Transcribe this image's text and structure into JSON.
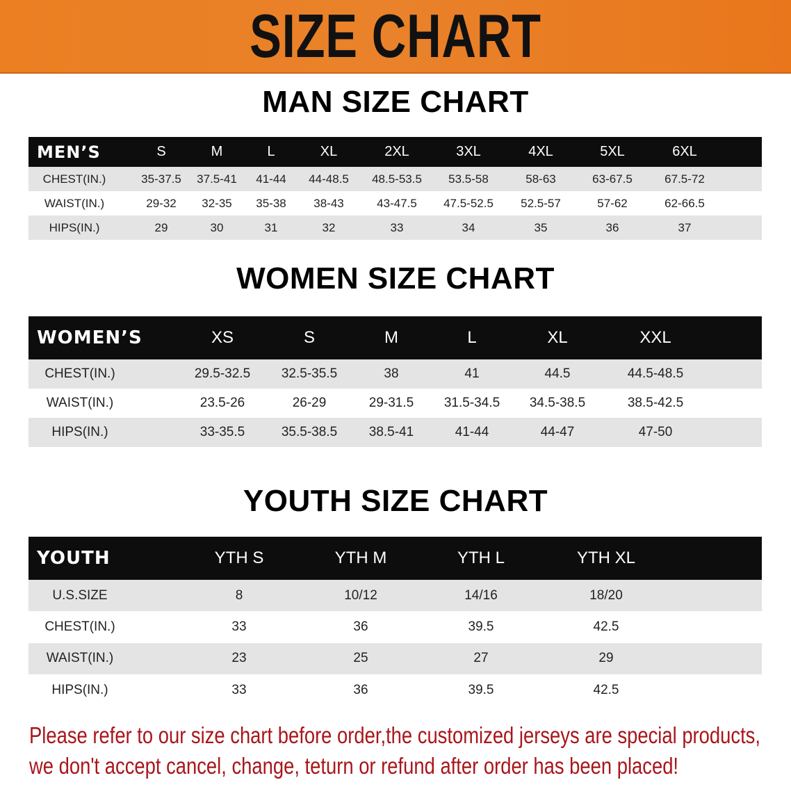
{
  "banner": {
    "title": "SIZE CHART",
    "color": "#e97b22"
  },
  "men": {
    "title": "MAN SIZE CHART",
    "corner": "MEN’S",
    "columns": [
      "S",
      "M",
      "L",
      "XL",
      "2XL",
      "3XL",
      "4XL",
      "5XL",
      "6XL"
    ],
    "rows": [
      {
        "label": "CHEST(IN.)",
        "values": [
          "35-37.5",
          "37.5-41",
          "41-44",
          "44-48.5",
          "48.5-53.5",
          "53.5-58",
          "58-63",
          "63-67.5",
          "67.5-72"
        ]
      },
      {
        "label": "WAIST(IN.)",
        "values": [
          "29-32",
          "32-35",
          "35-38",
          "38-43",
          "43-47.5",
          "47.5-52.5",
          "52.5-57",
          "57-62",
          "62-66.5"
        ]
      },
      {
        "label": "HIPS(IN.)",
        "values": [
          "29",
          "30",
          "31",
          "32",
          "33",
          "34",
          "35",
          "36",
          "37"
        ]
      }
    ]
  },
  "women": {
    "title": "WOMEN SIZE CHART",
    "corner": "WOMEN’S",
    "columns": [
      "XS",
      "S",
      "M",
      "L",
      "XL",
      "XXL"
    ],
    "rows": [
      {
        "label": "CHEST(IN.)",
        "values": [
          "29.5-32.5",
          "32.5-35.5",
          "38",
          "41",
          "44.5",
          "44.5-48.5"
        ]
      },
      {
        "label": "WAIST(IN.)",
        "values": [
          "23.5-26",
          "26-29",
          "29-31.5",
          "31.5-34.5",
          "34.5-38.5",
          "38.5-42.5"
        ]
      },
      {
        "label": "HIPS(IN.)",
        "values": [
          "33-35.5",
          "35.5-38.5",
          "38.5-41",
          "41-44",
          "44-47",
          "47-50"
        ]
      }
    ]
  },
  "youth": {
    "title": "YOUTH SIZE CHART",
    "corner": "YOUTH",
    "columns": [
      "YTH S",
      "YTH M",
      "YTH L",
      "YTH XL"
    ],
    "rows": [
      {
        "label": "U.S.SIZE",
        "values": [
          "8",
          "10/12",
          "14/16",
          "18/20"
        ]
      },
      {
        "label": "CHEST(IN.)",
        "values": [
          "33",
          "36",
          "39.5",
          "42.5"
        ]
      },
      {
        "label": "WAIST(IN.)",
        "values": [
          "23",
          "25",
          "27",
          "29"
        ]
      },
      {
        "label": "HIPS(IN.)",
        "values": [
          "33",
          "36",
          "39.5",
          "42.5"
        ]
      }
    ]
  },
  "note": {
    "line1": "Please refer to our size chart before order,the customized jerseys are special products,",
    "line2": "we don't accept cancel, change, teturn or refund after order has been placed!",
    "color": "#a8161b"
  }
}
